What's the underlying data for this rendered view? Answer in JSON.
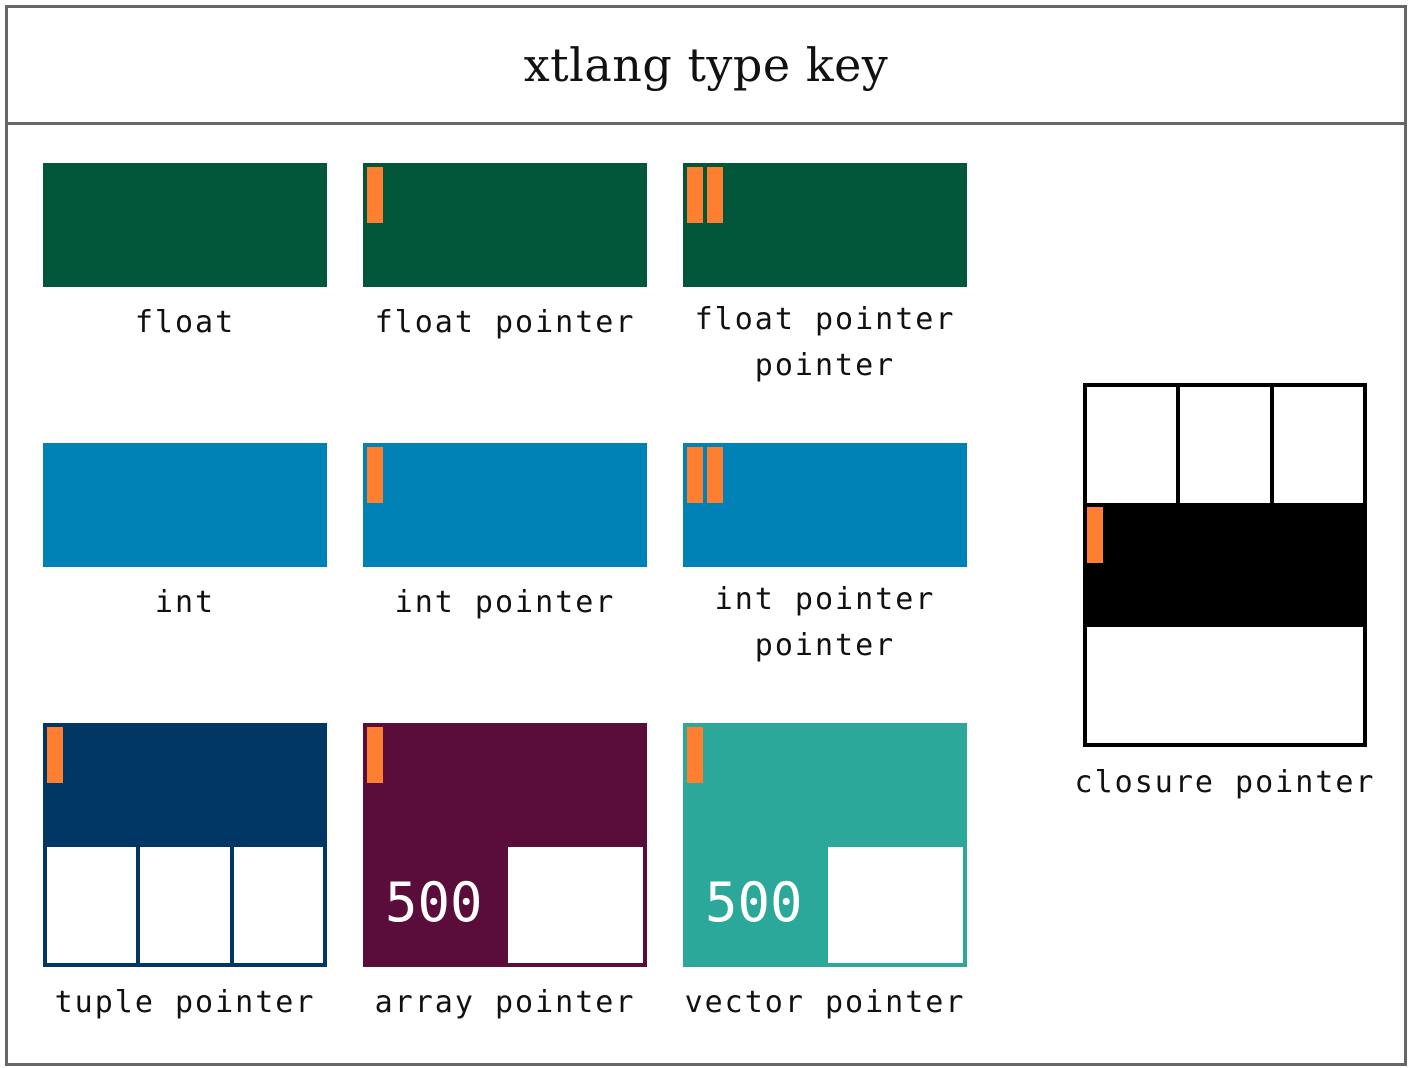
{
  "title": "xtlang type key",
  "colors": {
    "float": "#02573a",
    "int": "#0082b6",
    "tuple": "#003764",
    "array": "#5a0c3a",
    "vector": "#2ba899",
    "closure": "#000000",
    "pointer_marker": "#ff7f31",
    "frame": "#666666"
  },
  "types": {
    "float": "float",
    "float_pointer": "float pointer",
    "float_pointer_pointer": "float pointer\npointer",
    "int": "int",
    "int_pointer": "int pointer",
    "int_pointer_pointer": "int pointer\npointer",
    "tuple_pointer": "tuple pointer",
    "array_pointer": "array pointer",
    "vector_pointer": "vector pointer",
    "closure_pointer": "closure pointer"
  },
  "array_count": "500",
  "vector_count": "500"
}
